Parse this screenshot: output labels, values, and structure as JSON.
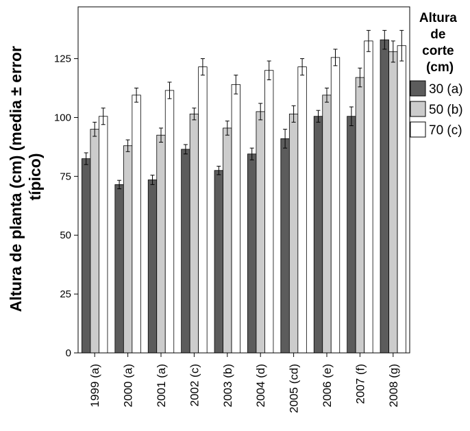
{
  "chart_data": {
    "type": "bar",
    "ylabel_lines": [
      "Altura de planta (cm) (media ± error",
      "típico)"
    ],
    "xlabel": "",
    "categories": [
      "1999 (a)",
      "2000 (a)",
      "2001 (a)",
      "2002 (c)",
      "2003 (b)",
      "2004 (d)",
      "2005 (cd)",
      "2006 (e)",
      "2007 (f)",
      "2008 (g)"
    ],
    "ylim": [
      0,
      147
    ],
    "yticks": [
      0,
      25,
      50,
      75,
      100,
      125
    ],
    "grid": false,
    "legend": {
      "title_lines": [
        "Altura",
        "de",
        "corte",
        "(cm)"
      ],
      "placement": "right"
    },
    "series": [
      {
        "name": "30 (a)",
        "color": "#5c5c5c",
        "values": [
          82.5,
          71.5,
          73.5,
          86.5,
          77.5,
          84.5,
          91.0,
          100.5,
          100.5,
          133.0
        ],
        "errors": [
          2.5,
          1.8,
          2.0,
          2.0,
          1.8,
          2.5,
          4.0,
          2.5,
          4.0,
          4.0
        ]
      },
      {
        "name": "50 (b)",
        "color": "#cccccc",
        "values": [
          95.0,
          88.0,
          92.5,
          101.5,
          95.5,
          102.5,
          101.5,
          109.5,
          117.0,
          128.0
        ],
        "errors": [
          3.0,
          2.5,
          3.0,
          2.5,
          3.0,
          3.5,
          3.5,
          3.0,
          4.0,
          4.5
        ]
      },
      {
        "name": "70 (c)",
        "color": "#ffffff",
        "values": [
          100.5,
          109.5,
          111.5,
          121.5,
          114.0,
          120.0,
          121.5,
          125.5,
          132.5,
          130.5
        ],
        "errors": [
          3.5,
          3.0,
          3.5,
          3.5,
          4.0,
          4.0,
          3.5,
          3.5,
          4.5,
          6.5
        ]
      }
    ]
  }
}
